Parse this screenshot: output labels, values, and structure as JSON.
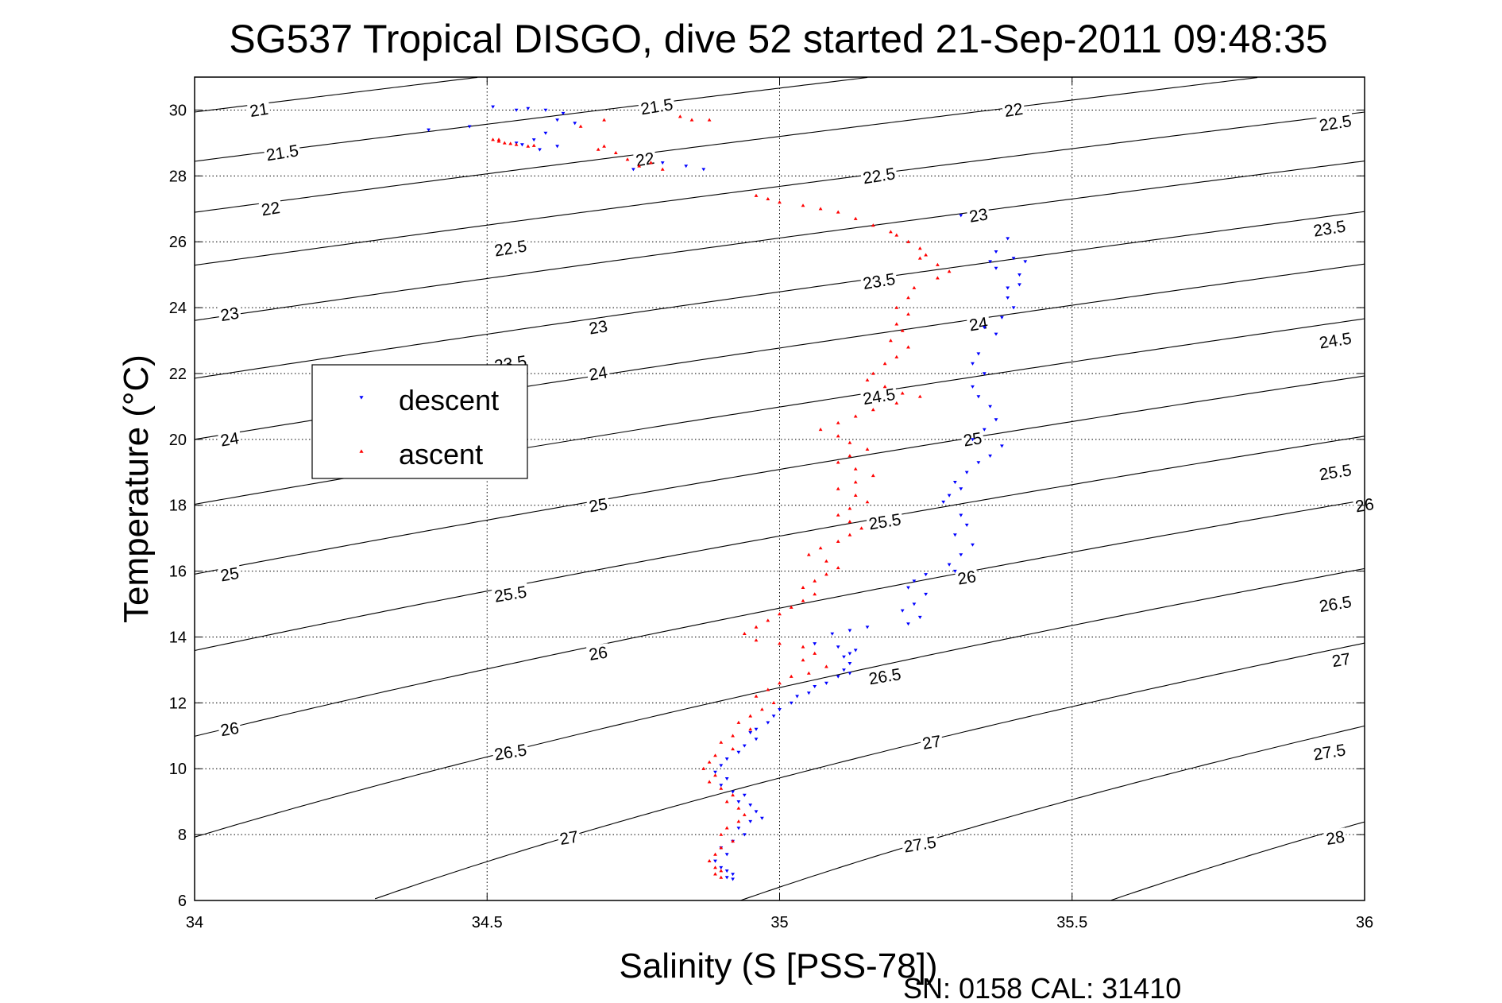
{
  "chart_data": {
    "type": "scatter",
    "title": "SG537 Tropical DISGO, dive 52 started 21-Sep-2011 09:48:35",
    "xlabel": "Salinity (S [PSS-78])",
    "ylabel": "Temperature (°C)",
    "xlim": [
      34,
      36
    ],
    "ylim": [
      6,
      31
    ],
    "x_ticks": [
      "34",
      "34.5",
      "35",
      "35.5",
      "36"
    ],
    "y_ticks": [
      "6",
      "8",
      "10",
      "12",
      "14",
      "16",
      "18",
      "20",
      "22",
      "24",
      "26",
      "28",
      "30"
    ],
    "grid": true,
    "legend_position": "upper-left",
    "footer": "SN: 0158  CAL: 31410",
    "contour_levels": [
      21,
      21.5,
      22,
      22.5,
      23,
      23.5,
      24,
      24.5,
      25,
      25.5,
      26,
      26.5,
      27,
      27.5,
      28
    ],
    "contour_labels": [
      {
        "text": "21",
        "x": 34.11,
        "y": 30.0
      },
      {
        "text": "21.5",
        "x": 34.15,
        "y": 28.7
      },
      {
        "text": "22",
        "x": 34.13,
        "y": 27.0
      },
      {
        "text": "23",
        "x": 34.06,
        "y": 23.8
      },
      {
        "text": "24",
        "x": 34.06,
        "y": 20.0
      },
      {
        "text": "25",
        "x": 34.06,
        "y": 15.9
      },
      {
        "text": "26",
        "x": 34.06,
        "y": 11.2
      },
      {
        "text": "21.5",
        "x": 34.79,
        "y": 30.1
      },
      {
        "text": "22",
        "x": 34.77,
        "y": 28.5
      },
      {
        "text": "22.5",
        "x": 34.54,
        "y": 25.8
      },
      {
        "text": "23",
        "x": 34.69,
        "y": 23.4
      },
      {
        "text": "23.5",
        "x": 34.54,
        "y": 22.3
      },
      {
        "text": "24",
        "x": 34.69,
        "y": 22.0
      },
      {
        "text": "25",
        "x": 34.69,
        "y": 18.0
      },
      {
        "text": "25.5",
        "x": 34.54,
        "y": 15.3
      },
      {
        "text": "26",
        "x": 34.69,
        "y": 13.5
      },
      {
        "text": "26.5",
        "x": 34.54,
        "y": 10.5
      },
      {
        "text": "27",
        "x": 34.64,
        "y": 7.9
      },
      {
        "text": "22",
        "x": 35.4,
        "y": 30.0
      },
      {
        "text": "22.5",
        "x": 35.17,
        "y": 28.0
      },
      {
        "text": "23",
        "x": 35.34,
        "y": 26.8
      },
      {
        "text": "23.5",
        "x": 35.17,
        "y": 24.8
      },
      {
        "text": "24",
        "x": 35.34,
        "y": 23.5
      },
      {
        "text": "24.5",
        "x": 35.17,
        "y": 21.3
      },
      {
        "text": "25",
        "x": 35.33,
        "y": 20.0
      },
      {
        "text": "25.5",
        "x": 35.18,
        "y": 17.5
      },
      {
        "text": "26",
        "x": 35.32,
        "y": 15.8
      },
      {
        "text": "26.5",
        "x": 35.18,
        "y": 12.8
      },
      {
        "text": "27",
        "x": 35.26,
        "y": 10.8
      },
      {
        "text": "27.5",
        "x": 35.24,
        "y": 7.7
      },
      {
        "text": "22.5",
        "x": 35.95,
        "y": 29.6
      },
      {
        "text": "23.5",
        "x": 35.94,
        "y": 26.4
      },
      {
        "text": "24.5",
        "x": 35.95,
        "y": 23.0
      },
      {
        "text": "25.5",
        "x": 35.95,
        "y": 19.0
      },
      {
        "text": "26",
        "x": 36.0,
        "y": 18.0
      },
      {
        "text": "26.5",
        "x": 35.95,
        "y": 15.0
      },
      {
        "text": "27",
        "x": 35.96,
        "y": 13.3
      },
      {
        "text": "27.5",
        "x": 35.94,
        "y": 10.5
      },
      {
        "text": "28",
        "x": 35.95,
        "y": 7.9
      }
    ],
    "series": [
      {
        "name": "descent",
        "color": "#0000ff",
        "marker": "triangle-down",
        "points": [
          [
            34.4,
            29.4
          ],
          [
            34.47,
            29.5
          ],
          [
            34.51,
            30.1
          ],
          [
            34.55,
            30.0
          ],
          [
            34.57,
            30.05
          ],
          [
            34.6,
            30.0
          ],
          [
            34.63,
            29.9
          ],
          [
            34.62,
            29.7
          ],
          [
            34.65,
            29.6
          ],
          [
            34.6,
            29.3
          ],
          [
            34.58,
            29.1
          ],
          [
            34.55,
            29.0
          ],
          [
            34.59,
            28.8
          ],
          [
            34.62,
            28.9
          ],
          [
            34.56,
            28.95
          ],
          [
            34.75,
            28.2
          ],
          [
            34.8,
            28.4
          ],
          [
            34.84,
            28.3
          ],
          [
            34.87,
            28.2
          ],
          [
            35.31,
            26.8
          ],
          [
            35.39,
            26.1
          ],
          [
            35.37,
            25.7
          ],
          [
            35.36,
            25.4
          ],
          [
            35.4,
            25.5
          ],
          [
            35.42,
            25.4
          ],
          [
            35.41,
            25.0
          ],
          [
            35.37,
            25.2
          ],
          [
            35.39,
            24.6
          ],
          [
            35.41,
            24.7
          ],
          [
            35.39,
            24.3
          ],
          [
            35.4,
            24.0
          ],
          [
            35.38,
            23.7
          ],
          [
            35.35,
            23.4
          ],
          [
            35.37,
            23.2
          ],
          [
            35.34,
            22.6
          ],
          [
            35.33,
            22.3
          ],
          [
            35.35,
            22.0
          ],
          [
            35.33,
            21.6
          ],
          [
            35.34,
            21.3
          ],
          [
            35.36,
            21.0
          ],
          [
            35.37,
            20.6
          ],
          [
            35.35,
            20.3
          ],
          [
            35.33,
            20.0
          ],
          [
            35.38,
            19.8
          ],
          [
            35.36,
            19.5
          ],
          [
            35.34,
            19.3
          ],
          [
            35.32,
            19.0
          ],
          [
            35.3,
            18.7
          ],
          [
            35.31,
            18.5
          ],
          [
            35.29,
            18.3
          ],
          [
            35.28,
            18.1
          ],
          [
            35.31,
            17.7
          ],
          [
            35.32,
            17.4
          ],
          [
            35.3,
            17.1
          ],
          [
            35.33,
            16.8
          ],
          [
            35.31,
            16.5
          ],
          [
            35.29,
            16.2
          ],
          [
            35.3,
            16.0
          ],
          [
            35.25,
            15.9
          ],
          [
            35.23,
            15.7
          ],
          [
            35.22,
            15.5
          ],
          [
            35.25,
            15.3
          ],
          [
            35.23,
            15.0
          ],
          [
            35.21,
            14.8
          ],
          [
            35.24,
            14.6
          ],
          [
            35.22,
            14.4
          ],
          [
            35.15,
            14.3
          ],
          [
            35.12,
            14.2
          ],
          [
            35.09,
            14.1
          ],
          [
            35.06,
            13.8
          ],
          [
            35.1,
            13.7
          ],
          [
            35.13,
            13.6
          ],
          [
            35.12,
            13.5
          ],
          [
            35.11,
            13.4
          ],
          [
            35.12,
            13.2
          ],
          [
            35.11,
            13.0
          ],
          [
            35.12,
            12.9
          ],
          [
            35.1,
            12.8
          ],
          [
            35.08,
            12.6
          ],
          [
            35.06,
            12.5
          ],
          [
            35.05,
            12.3
          ],
          [
            35.03,
            12.2
          ],
          [
            35.02,
            12.0
          ],
          [
            35.0,
            11.8
          ],
          [
            34.99,
            11.6
          ],
          [
            34.98,
            11.4
          ],
          [
            34.96,
            11.2
          ],
          [
            34.95,
            11.1
          ],
          [
            34.96,
            10.9
          ],
          [
            34.94,
            10.7
          ],
          [
            34.93,
            10.5
          ],
          [
            34.91,
            10.3
          ],
          [
            34.9,
            10.1
          ],
          [
            34.89,
            9.9
          ],
          [
            34.91,
            9.7
          ],
          [
            34.9,
            9.5
          ],
          [
            34.92,
            9.3
          ],
          [
            34.94,
            9.2
          ],
          [
            34.93,
            9.0
          ],
          [
            34.95,
            8.9
          ],
          [
            34.96,
            8.7
          ],
          [
            34.97,
            8.5
          ],
          [
            34.95,
            8.4
          ],
          [
            34.93,
            8.2
          ],
          [
            34.94,
            8.0
          ],
          [
            34.92,
            7.8
          ],
          [
            34.9,
            7.6
          ],
          [
            34.91,
            7.4
          ],
          [
            34.89,
            7.2
          ],
          [
            34.9,
            7.0
          ],
          [
            34.91,
            6.9
          ],
          [
            34.92,
            6.8
          ],
          [
            34.91,
            6.7
          ],
          [
            34.92,
            6.65
          ]
        ]
      },
      {
        "name": "ascent",
        "color": "#ff0000",
        "marker": "triangle-up",
        "points": [
          [
            34.51,
            29.1
          ],
          [
            34.52,
            29.05
          ],
          [
            34.53,
            29.0
          ],
          [
            34.55,
            28.95
          ],
          [
            34.57,
            28.9
          ],
          [
            34.58,
            28.92
          ],
          [
            34.52,
            29.1
          ],
          [
            34.54,
            28.98
          ],
          [
            34.66,
            29.5
          ],
          [
            34.7,
            29.7
          ],
          [
            34.83,
            29.8
          ],
          [
            34.85,
            29.7
          ],
          [
            34.88,
            29.7
          ],
          [
            34.7,
            28.9
          ],
          [
            34.72,
            28.7
          ],
          [
            34.74,
            28.5
          ],
          [
            34.76,
            28.3
          ],
          [
            34.78,
            28.4
          ],
          [
            34.8,
            28.2
          ],
          [
            34.69,
            28.8
          ],
          [
            34.96,
            27.4
          ],
          [
            34.98,
            27.3
          ],
          [
            35.0,
            27.2
          ],
          [
            35.04,
            27.1
          ],
          [
            35.07,
            27.0
          ],
          [
            35.1,
            26.9
          ],
          [
            35.13,
            26.7
          ],
          [
            35.16,
            26.5
          ],
          [
            35.19,
            26.3
          ],
          [
            35.2,
            26.2
          ],
          [
            35.22,
            26.0
          ],
          [
            35.24,
            25.8
          ],
          [
            35.25,
            25.6
          ],
          [
            35.24,
            25.5
          ],
          [
            35.27,
            25.3
          ],
          [
            35.29,
            25.1
          ],
          [
            35.27,
            24.9
          ],
          [
            35.23,
            24.6
          ],
          [
            35.22,
            24.3
          ],
          [
            35.2,
            24.0
          ],
          [
            35.22,
            23.8
          ],
          [
            35.2,
            23.5
          ],
          [
            35.21,
            23.3
          ],
          [
            35.19,
            23.0
          ],
          [
            35.22,
            22.8
          ],
          [
            35.2,
            22.5
          ],
          [
            35.18,
            22.3
          ],
          [
            35.16,
            22.0
          ],
          [
            35.15,
            21.8
          ],
          [
            35.18,
            21.6
          ],
          [
            35.21,
            21.4
          ],
          [
            35.24,
            21.3
          ],
          [
            35.2,
            21.1
          ],
          [
            35.16,
            20.9
          ],
          [
            35.13,
            20.7
          ],
          [
            35.1,
            20.5
          ],
          [
            35.07,
            20.3
          ],
          [
            35.1,
            20.1
          ],
          [
            35.12,
            19.9
          ],
          [
            35.15,
            19.7
          ],
          [
            35.12,
            19.5
          ],
          [
            35.1,
            19.3
          ],
          [
            35.13,
            19.1
          ],
          [
            35.16,
            18.9
          ],
          [
            35.13,
            18.7
          ],
          [
            35.1,
            18.5
          ],
          [
            35.13,
            18.3
          ],
          [
            35.15,
            18.1
          ],
          [
            35.12,
            17.9
          ],
          [
            35.1,
            17.7
          ],
          [
            35.12,
            17.5
          ],
          [
            35.14,
            17.3
          ],
          [
            35.12,
            17.1
          ],
          [
            35.1,
            16.9
          ],
          [
            35.07,
            16.7
          ],
          [
            35.05,
            16.5
          ],
          [
            35.08,
            16.3
          ],
          [
            35.1,
            16.1
          ],
          [
            35.08,
            15.9
          ],
          [
            35.06,
            15.7
          ],
          [
            35.04,
            15.5
          ],
          [
            35.06,
            15.3
          ],
          [
            35.04,
            15.1
          ],
          [
            35.02,
            14.9
          ],
          [
            35.0,
            14.7
          ],
          [
            34.98,
            14.5
          ],
          [
            34.96,
            14.3
          ],
          [
            34.94,
            14.1
          ],
          [
            34.96,
            13.9
          ],
          [
            35.0,
            13.8
          ],
          [
            35.04,
            13.7
          ],
          [
            35.06,
            13.5
          ],
          [
            35.04,
            13.3
          ],
          [
            35.08,
            13.1
          ],
          [
            35.05,
            12.9
          ],
          [
            35.02,
            12.8
          ],
          [
            35.0,
            12.6
          ],
          [
            34.98,
            12.4
          ],
          [
            34.96,
            12.2
          ],
          [
            34.99,
            12.0
          ],
          [
            34.97,
            11.8
          ],
          [
            34.95,
            11.6
          ],
          [
            34.93,
            11.4
          ],
          [
            34.95,
            11.2
          ],
          [
            34.92,
            11.0
          ],
          [
            34.9,
            10.8
          ],
          [
            34.92,
            10.6
          ],
          [
            34.89,
            10.4
          ],
          [
            34.88,
            10.2
          ],
          [
            34.87,
            10.0
          ],
          [
            34.89,
            9.8
          ],
          [
            34.88,
            9.6
          ],
          [
            34.9,
            9.4
          ],
          [
            34.92,
            9.2
          ],
          [
            34.91,
            9.0
          ],
          [
            34.93,
            8.8
          ],
          [
            34.94,
            8.6
          ],
          [
            34.93,
            8.4
          ],
          [
            34.91,
            8.2
          ],
          [
            34.9,
            8.0
          ],
          [
            34.92,
            7.8
          ],
          [
            34.9,
            7.6
          ],
          [
            34.89,
            7.4
          ],
          [
            34.88,
            7.2
          ],
          [
            34.89,
            7.0
          ],
          [
            34.9,
            6.9
          ],
          [
            34.89,
            6.8
          ],
          [
            34.9,
            6.7
          ]
        ]
      }
    ]
  }
}
